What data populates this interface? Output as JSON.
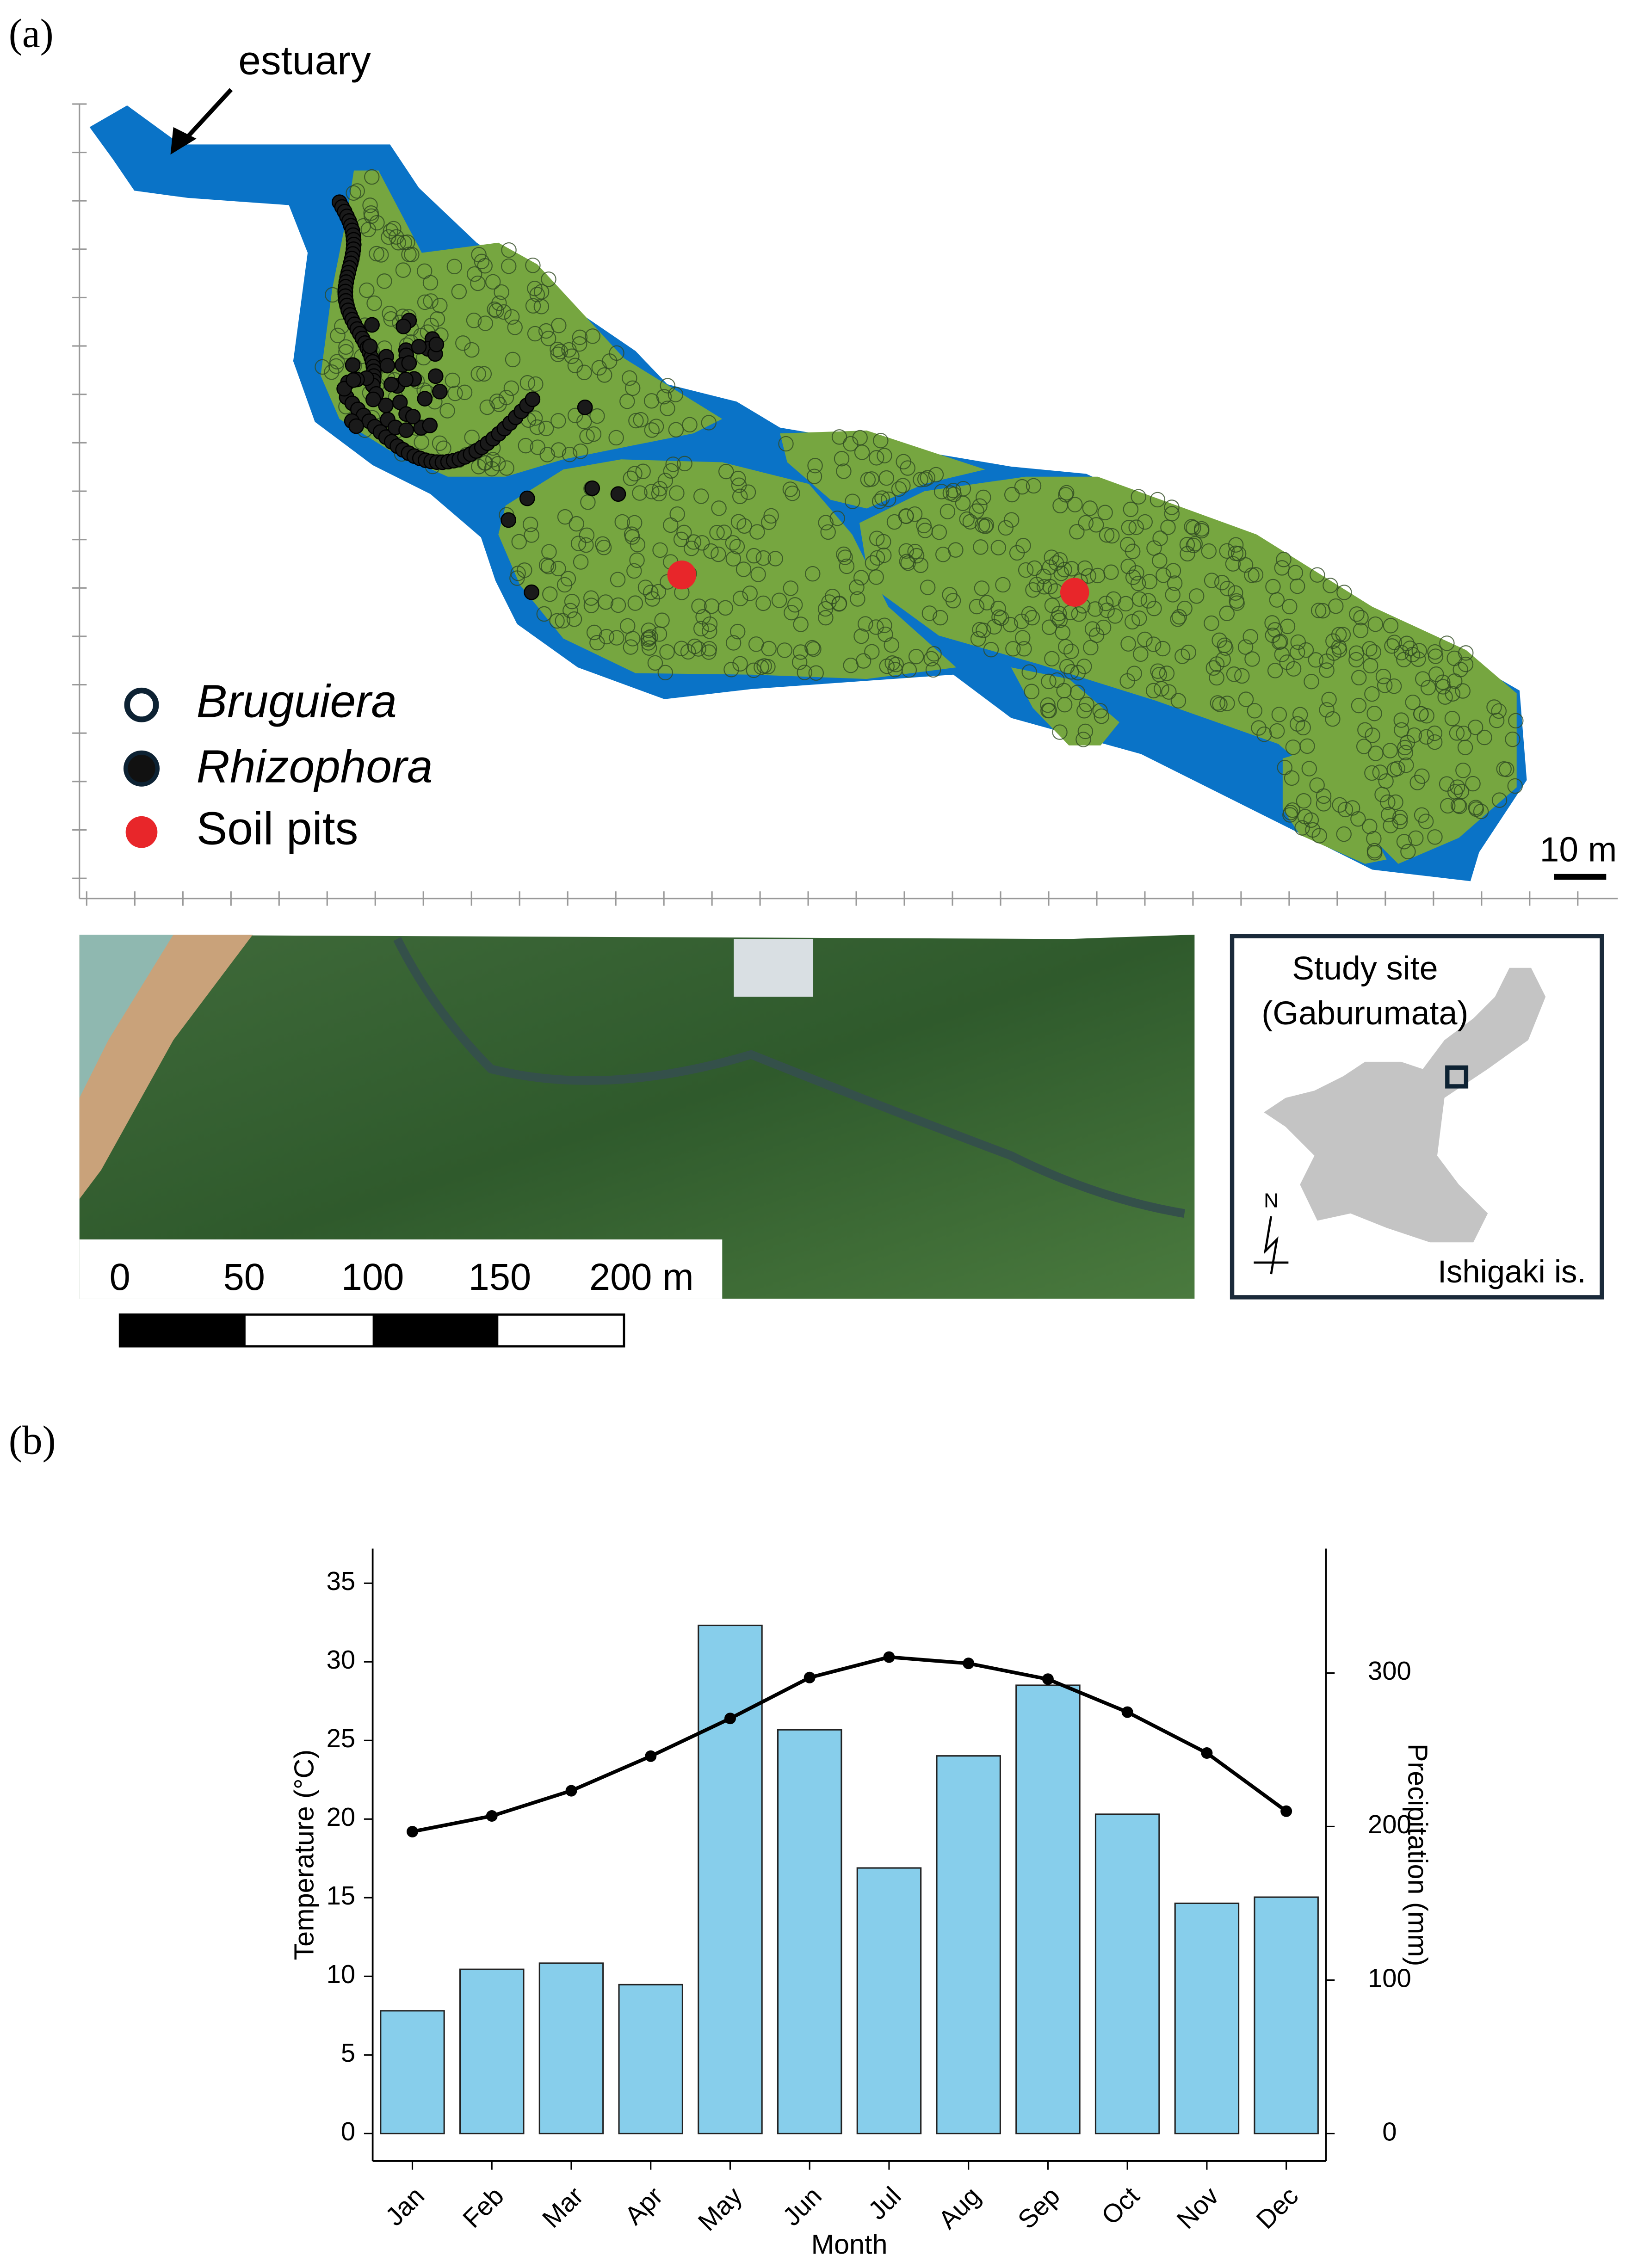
{
  "panel_a": {
    "label": "(a)",
    "annotation": "estuary",
    "legend": [
      "Bruguiera",
      "Rhizophora",
      "Soil pits"
    ],
    "map_scale": "10 m",
    "photo_scale": [
      "0",
      "50",
      "100",
      "150",
      "200 m"
    ],
    "inset": {
      "site": "Study site",
      "site_name": "(Gaburumata)",
      "north": "N",
      "island": "Ishigaki is."
    }
  },
  "panel_b": {
    "label": "(b)"
  },
  "chart_data": {
    "type": "bar",
    "x_label": "Month",
    "y_label": "Temperature (°C)",
    "y2_label": "Precipitation (mm)",
    "categories": [
      "Jan",
      "Feb",
      "Mar",
      "Apr",
      "May",
      "Jun",
      "Jul",
      "Aug",
      "Sep",
      "Oct",
      "Nov",
      "Dec"
    ],
    "series": [
      {
        "type": "bar",
        "axis": "y2",
        "color": "#87ceeb",
        "values": [
          80,
          107,
          111,
          97,
          331,
          263,
          173,
          246,
          292,
          208,
          150,
          154
        ]
      },
      {
        "type": "line",
        "axis": "y",
        "color": "#000000",
        "values": [
          19.2,
          20.2,
          21.8,
          24.0,
          26.4,
          29.0,
          30.3,
          29.9,
          28.9,
          26.8,
          24.2,
          20.5
        ]
      }
    ],
    "ylim": [
      -1.75,
      37.2
    ],
    "yticks": [
      0,
      5,
      10,
      15,
      20,
      25,
      30,
      35
    ],
    "y2lim": [
      -17.9,
      381
    ],
    "y2ticks": [
      0,
      100,
      200,
      300
    ]
  }
}
